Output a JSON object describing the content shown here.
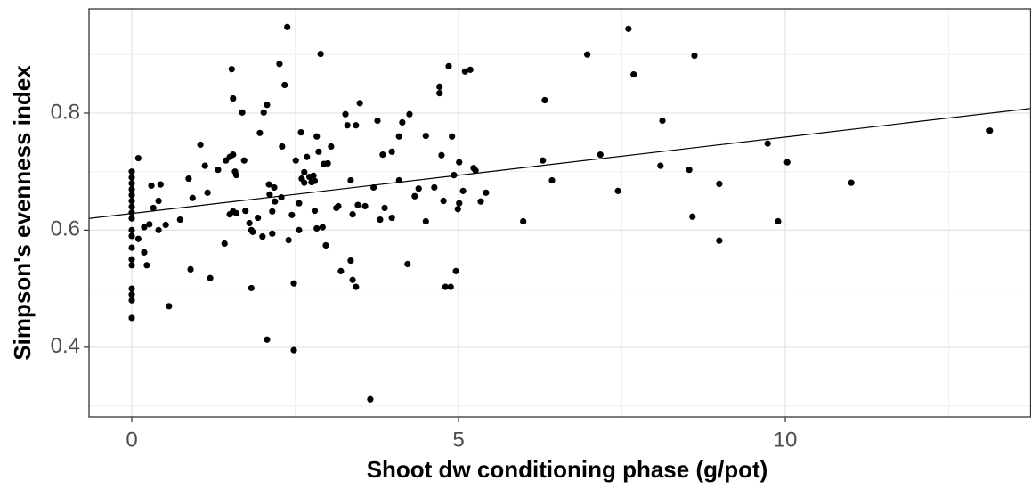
{
  "chart_data": {
    "type": "scatter",
    "xlabel": "Shoot dw conditioning phase (g/pot)",
    "ylabel": "Simpson's evenness index",
    "color": "#000000",
    "xlim": [
      -0.654,
      13.76
    ],
    "ylim": [
      0.281,
      0.978
    ],
    "xticks": [
      0,
      5,
      10
    ],
    "yticks": [
      0.4,
      0.6,
      0.8
    ],
    "x_minor_grid": [
      2.5,
      7.5,
      12.5
    ],
    "y_minor_grid": [
      0.3,
      0.5,
      0.7,
      0.9
    ],
    "grid": true,
    "x": [
      0,
      0,
      0,
      0,
      0,
      0,
      0,
      0,
      0,
      0,
      0,
      0,
      0,
      0,
      0,
      0,
      0,
      0,
      0.1,
      0.1,
      0.19,
      0.19,
      0.23,
      0.27,
      0.3,
      0.33,
      0.41,
      0.44,
      0.41,
      0.52,
      0.57,
      0.74,
      0.87,
      0.9,
      0.93,
      1.05,
      1.12,
      1.16,
      1.2,
      1.32,
      1.42,
      1.44,
      1.5,
      1.53,
      1.55,
      1.55,
      1.58,
      1.6,
      1.5,
      1.55,
      1.6,
      1.69,
      1.72,
      1.74,
      1.8,
      1.83,
      1.85,
      1.83,
      1.93,
      1.96,
      2.0,
      2.02,
      2.07,
      2.07,
      2.1,
      2.11,
      2.15,
      2.15,
      2.18,
      2.19,
      2.26,
      2.29,
      2.3,
      2.34,
      2.38,
      2.4,
      2.45,
      2.48,
      2.48,
      2.51,
      2.56,
      2.56,
      2.59,
      2.6,
      2.64,
      2.64,
      2.68,
      2.72,
      2.75,
      2.78,
      2.8,
      2.8,
      2.83,
      2.83,
      2.86,
      2.89,
      2.92,
      2.94,
      2.97,
      3.0,
      3.05,
      3.13,
      3.16,
      3.2,
      3.27,
      3.3,
      3.35,
      3.35,
      3.38,
      3.38,
      3.43,
      3.43,
      3.46,
      3.49,
      3.57,
      3.65,
      3.7,
      3.76,
      3.8,
      3.84,
      3.87,
      3.98,
      3.98,
      4.09,
      4.09,
      4.14,
      4.22,
      4.25,
      4.33,
      4.39,
      4.5,
      4.5,
      4.63,
      4.71,
      4.71,
      4.74,
      4.77,
      4.8,
      4.85,
      4.88,
      4.9,
      4.93,
      4.96,
      4.99,
      5.01,
      5.01,
      5.07,
      5.1,
      5.18,
      5.23,
      5.26,
      5.34,
      5.42,
      5.99,
      6.29,
      6.32,
      6.43,
      6.97,
      7.17,
      7.44,
      7.6,
      7.68,
      8.12,
      8.09,
      8.53,
      8.58,
      8.61,
      8.99,
      8.99,
      9.73,
      9.89,
      10.03,
      11.01,
      13.13
    ],
    "y": [
      0.7,
      0.69,
      0.68,
      0.67,
      0.66,
      0.65,
      0.64,
      0.63,
      0.62,
      0.6,
      0.59,
      0.57,
      0.55,
      0.54,
      0.5,
      0.49,
      0.48,
      0.45,
      0.723,
      0.585,
      0.605,
      0.562,
      0.54,
      0.61,
      0.676,
      0.638,
      0.65,
      0.678,
      0.6,
      0.609,
      0.47,
      0.618,
      0.688,
      0.533,
      0.655,
      0.746,
      0.71,
      0.664,
      0.518,
      0.703,
      0.577,
      0.719,
      0.725,
      0.875,
      0.825,
      0.729,
      0.7,
      0.694,
      0.627,
      0.632,
      0.629,
      0.801,
      0.719,
      0.633,
      0.612,
      0.6,
      0.597,
      0.501,
      0.621,
      0.766,
      0.589,
      0.801,
      0.814,
      0.413,
      0.678,
      0.661,
      0.632,
      0.594,
      0.673,
      0.649,
      0.884,
      0.656,
      0.743,
      0.848,
      0.947,
      0.583,
      0.626,
      0.509,
      0.395,
      0.719,
      0.646,
      0.6,
      0.767,
      0.688,
      0.699,
      0.681,
      0.725,
      0.691,
      0.682,
      0.693,
      0.684,
      0.633,
      0.76,
      0.603,
      0.734,
      0.901,
      0.605,
      0.713,
      0.574,
      0.714,
      0.743,
      0.638,
      0.641,
      0.53,
      0.798,
      0.779,
      0.685,
      0.548,
      0.515,
      0.627,
      0.503,
      0.779,
      0.643,
      0.817,
      0.641,
      0.311,
      0.673,
      0.787,
      0.618,
      0.729,
      0.638,
      0.734,
      0.621,
      0.685,
      0.76,
      0.784,
      0.542,
      0.798,
      0.658,
      0.671,
      0.615,
      0.761,
      0.673,
      0.845,
      0.834,
      0.728,
      0.65,
      0.503,
      0.88,
      0.503,
      0.76,
      0.694,
      0.53,
      0.636,
      0.716,
      0.646,
      0.667,
      0.871,
      0.874,
      0.706,
      0.702,
      0.649,
      0.664,
      0.615,
      0.719,
      0.822,
      0.685,
      0.9,
      0.729,
      0.667,
      0.944,
      0.866,
      0.787,
      0.71,
      0.703,
      0.623,
      0.898,
      0.679,
      0.582,
      0.748,
      0.615,
      0.716,
      0.681,
      0.77
    ],
    "fit_line": {
      "x": [
        -0.654,
        13.76
      ],
      "y": [
        0.62,
        0.808
      ]
    }
  }
}
